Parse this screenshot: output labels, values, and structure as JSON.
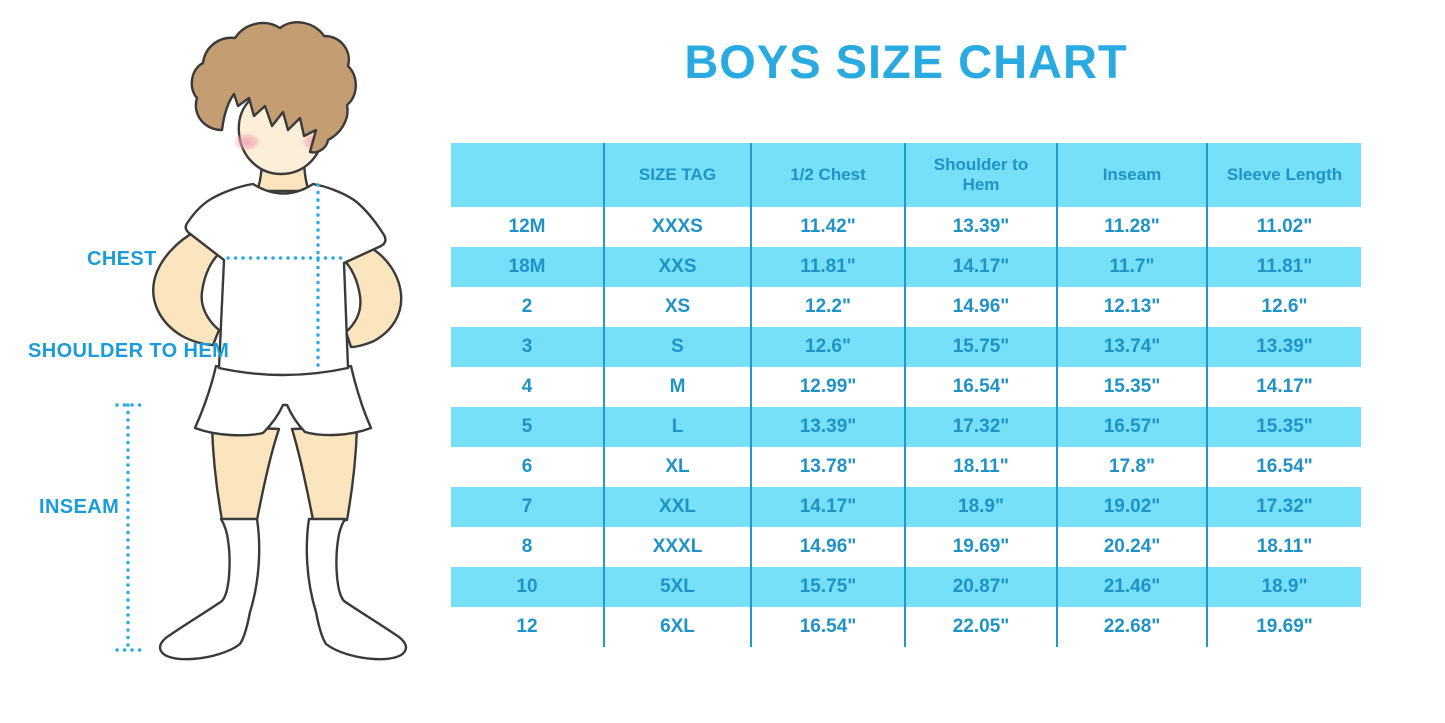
{
  "title": "BOYS SIZE CHART",
  "figure_labels": {
    "chest": "CHEST",
    "shoulder_to_hem": "SHOULDER TO HEM",
    "inseam": "INSEAM"
  },
  "colors": {
    "title_blue": "#29abe2",
    "label_blue": "#1b9cd8",
    "dotted_blue": "#29abe2",
    "table_text": "#2093c6",
    "row_cyan": "#77e0f9",
    "divider_blue": "#2199cc",
    "outline": "#3a3a3a",
    "skin": "#fae5bf",
    "face_skin": "#fcefda",
    "hair": "#c49d72",
    "blush": "#f0a0b0"
  },
  "chart_data": {
    "type": "table",
    "title": "BOYS SIZE CHART",
    "columns": [
      "",
      "SIZE TAG",
      "1/2 Chest",
      "Shoulder to Hem",
      "Inseam",
      "Sleeve Length"
    ],
    "rows": [
      [
        "12M",
        "XXXS",
        "11.42\"",
        "13.39\"",
        "11.28\"",
        "11.02\""
      ],
      [
        "18M",
        "XXS",
        "11.81\"",
        "14.17\"",
        "11.7\"",
        "11.81\""
      ],
      [
        "2",
        "XS",
        "12.2\"",
        "14.96\"",
        "12.13\"",
        "12.6\""
      ],
      [
        "3",
        "S",
        "12.6\"",
        "15.75\"",
        "13.74\"",
        "13.39\""
      ],
      [
        "4",
        "M",
        "12.99\"",
        "16.54\"",
        "15.35\"",
        "14.17\""
      ],
      [
        "5",
        "L",
        "13.39\"",
        "17.32\"",
        "16.57\"",
        "15.35\""
      ],
      [
        "6",
        "XL",
        "13.78\"",
        "18.11\"",
        "17.8\"",
        "16.54\""
      ],
      [
        "7",
        "XXL",
        "14.17\"",
        "18.9\"",
        "19.02\"",
        "17.32\""
      ],
      [
        "8",
        "XXXL",
        "14.96\"",
        "19.69\"",
        "20.24\"",
        "18.11\""
      ],
      [
        "10",
        "5XL",
        "15.75\"",
        "20.87\"",
        "21.46\"",
        "18.9\""
      ],
      [
        "12",
        "6XL",
        "16.54\"",
        "22.05\"",
        "22.68\"",
        "19.69\""
      ]
    ]
  }
}
